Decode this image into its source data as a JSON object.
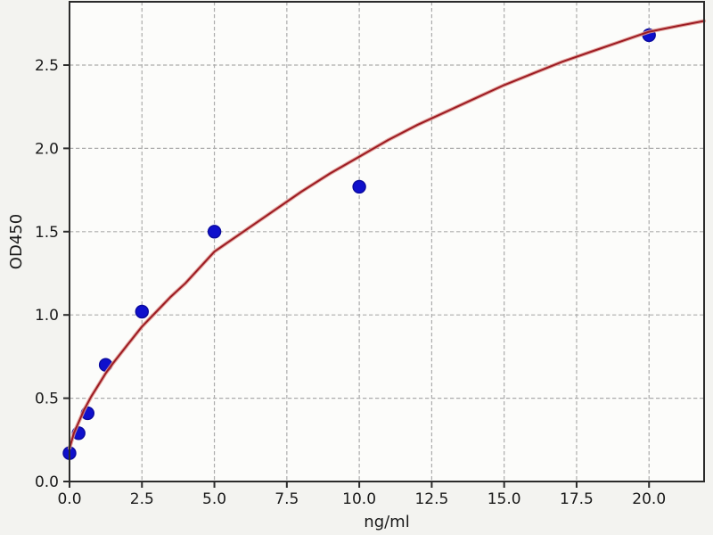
{
  "chart_data": {
    "type": "scatter",
    "title": "",
    "xlabel": "ng/ml",
    "ylabel": "OD450",
    "xlim": [
      0,
      21.9
    ],
    "ylim": [
      0,
      2.88
    ],
    "grid": true,
    "legend": "none",
    "x_ticks": {
      "values": [
        0,
        2.5,
        5,
        7.5,
        10,
        12.5,
        15,
        17.5,
        20
      ],
      "labels": [
        "0.0",
        "2.5",
        "5.0",
        "7.5",
        "10.0",
        "12.5",
        "15.0",
        "17.5",
        "20.0"
      ]
    },
    "y_ticks": {
      "values": [
        0,
        0.5,
        1.0,
        1.5,
        2.0,
        2.5
      ],
      "labels": [
        "0.0",
        "0.5",
        "1.0",
        "1.5",
        "2.0",
        "2.5"
      ]
    },
    "series": [
      {
        "name": "standard-points",
        "type": "scatter",
        "marker": "circle",
        "color": "#0f10cc",
        "edge_color": "#0a0a9e",
        "x": [
          0,
          0.313,
          0.625,
          1.25,
          2.5,
          5,
          10,
          20
        ],
        "y": [
          0.17,
          0.29,
          0.41,
          0.7,
          1.02,
          1.5,
          1.77,
          2.68
        ]
      },
      {
        "name": "fit-curve",
        "type": "line",
        "color": "#9c1b22",
        "halo_color": "#e09a93",
        "x": [
          0,
          0.15,
          0.3,
          0.5,
          0.75,
          1.0,
          1.25,
          1.5,
          2.0,
          2.5,
          3.0,
          3.5,
          4.0,
          5.0,
          6.0,
          7.0,
          8.0,
          9.0,
          10.0,
          11.0,
          12.0,
          13.0,
          14.0,
          15.0,
          16.0,
          17.0,
          18.0,
          19.0,
          20.0,
          21.0,
          21.9
        ],
        "y": [
          0.2,
          0.29,
          0.35,
          0.43,
          0.51,
          0.58,
          0.65,
          0.71,
          0.82,
          0.93,
          1.02,
          1.11,
          1.19,
          1.38,
          1.5,
          1.62,
          1.74,
          1.85,
          1.95,
          2.05,
          2.14,
          2.22,
          2.3,
          2.38,
          2.45,
          2.52,
          2.58,
          2.64,
          2.7,
          2.735,
          2.765
        ]
      }
    ],
    "colors": {
      "figure_bg": "#f3f3f0",
      "plot_bg": "#fcfcfa",
      "grid": "#ababab",
      "spine": "#2b2b2b",
      "text": "#1a1a1a"
    }
  }
}
